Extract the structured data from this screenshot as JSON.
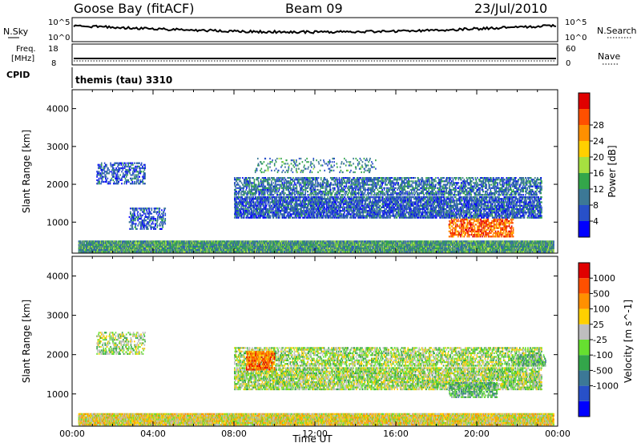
{
  "header": {
    "station": "Goose Bay (fitACF)",
    "beam": "Beam 09",
    "date": "23/Jul/2010"
  },
  "labels": {
    "nsky": "N.Sky",
    "nsearch": "N.Search",
    "freq_line1": "Freq.",
    "freq_line2": "[MHz]",
    "cpid": "CPID",
    "nave": "Nave",
    "cpid_text": "themis (tau) 3310",
    "noise_left_top": "10^5",
    "noise_left_bottom": "10^0",
    "noise_right_top": "10^5",
    "noise_right_bottom": "10^0",
    "freq_left_top": "18",
    "freq_left_bottom": "8",
    "nave_right_top": "60",
    "nave_right_bottom": "0"
  },
  "chart_data": [
    {
      "type": "heatmap",
      "panel": "power",
      "ylabel": "Slant Range [km]",
      "xlabel": "",
      "yticks": [
        "1000",
        "2000",
        "3000",
        "4000"
      ],
      "ylim": [
        180,
        4500
      ],
      "xlim": [
        0,
        24
      ],
      "colorbar_label": "Power [dB]",
      "colorbar_ticks": [
        "4",
        "8",
        "12",
        "16",
        "20",
        "24",
        "28"
      ],
      "colorbar_colors": [
        "#0000ff",
        "#2850c8",
        "#3c7896",
        "#33a64a",
        "#a6e040",
        "#ffd000",
        "#ff9000",
        "#ff5000",
        "#e00000"
      ],
      "scatter_regions": [
        {
          "t0": 0.3,
          "t1": 23.8,
          "r0": 200,
          "r1": 500,
          "density": 0.9,
          "level": 0.35
        },
        {
          "t0": 1.2,
          "t1": 3.6,
          "r0": 2000,
          "r1": 2600,
          "density": 0.3,
          "level": 0.2
        },
        {
          "t0": 2.8,
          "t1": 4.6,
          "r0": 800,
          "r1": 1400,
          "density": 0.3,
          "level": 0.2
        },
        {
          "t0": 8.0,
          "t1": 23.2,
          "r0": 1100,
          "r1": 1700,
          "density": 0.55,
          "level": 0.2
        },
        {
          "t0": 8.0,
          "t1": 23.2,
          "r0": 1700,
          "r1": 2200,
          "density": 0.4,
          "level": 0.25
        },
        {
          "t0": 18.6,
          "t1": 21.8,
          "r0": 600,
          "r1": 1100,
          "density": 0.4,
          "level": 0.8
        },
        {
          "t0": 9.0,
          "t1": 15.0,
          "r0": 2300,
          "r1": 2700,
          "density": 0.12,
          "level": 0.3
        }
      ]
    },
    {
      "type": "heatmap",
      "panel": "velocity",
      "ylabel": "Slant Range [km]",
      "xlabel": "Time UT",
      "xticks": [
        "00:00",
        "04:00",
        "08:00",
        "12:00",
        "16:00",
        "20:00",
        "00:00"
      ],
      "yticks": [
        "1000",
        "2000",
        "3000",
        "4000"
      ],
      "ylim": [
        180,
        4500
      ],
      "xlim": [
        0,
        24
      ],
      "colorbar_label": "Velocity [m s^-1]",
      "colorbar_ticks": [
        "1000",
        "500",
        "100",
        "25",
        "-25",
        "-100",
        "-500",
        "-1000"
      ],
      "colorbar_colors": [
        "#0000ff",
        "#2850c8",
        "#3c7896",
        "#33a64a",
        "#66e030",
        "#bebebe",
        "#ffd000",
        "#ff9000",
        "#ff5000",
        "#e00000"
      ],
      "scatter_regions": [
        {
          "t0": 0.3,
          "t1": 23.8,
          "r0": 200,
          "r1": 500,
          "density": 0.9,
          "level": 0.6
        },
        {
          "t0": 1.2,
          "t1": 3.6,
          "r0": 2000,
          "r1": 2600,
          "density": 0.3,
          "level": 0.5
        },
        {
          "t0": 8.0,
          "t1": 23.2,
          "r0": 1100,
          "r1": 1700,
          "density": 0.55,
          "level": 0.5
        },
        {
          "t0": 8.0,
          "t1": 23.2,
          "r0": 1700,
          "r1": 2200,
          "density": 0.4,
          "level": 0.5
        },
        {
          "t0": 8.6,
          "t1": 10.0,
          "r0": 1600,
          "r1": 2100,
          "density": 0.6,
          "level": 0.8
        },
        {
          "t0": 18.6,
          "t1": 21.0,
          "r0": 900,
          "r1": 1300,
          "density": 0.45,
          "level": 0.4
        },
        {
          "t0": 22.0,
          "t1": 23.4,
          "r0": 1700,
          "r1": 2000,
          "density": 0.4,
          "level": 0.4
        }
      ]
    }
  ]
}
